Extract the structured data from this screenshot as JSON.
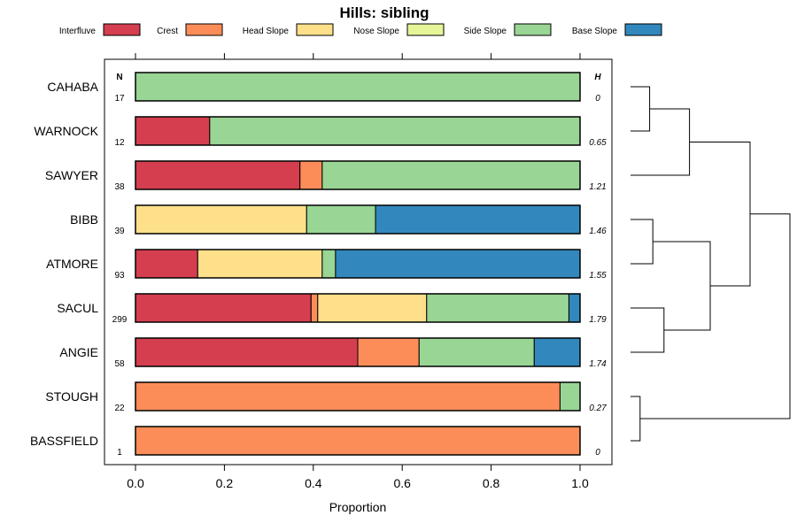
{
  "chart_data": {
    "type": "bar",
    "stacked": true,
    "orientation": "horizontal",
    "title": "Hills: sibling",
    "xlabel": "Proportion",
    "ylabel": "",
    "xlim": [
      0,
      1
    ],
    "x_ticks": [
      "0.0",
      "0.2",
      "0.4",
      "0.6",
      "0.8",
      "1.0"
    ],
    "left_column_header": "N",
    "right_column_header": "H",
    "legend_position": "top",
    "legend": [
      {
        "name": "Interfluve",
        "color": "#D53E4F"
      },
      {
        "name": "Crest",
        "color": "#FC8D59"
      },
      {
        "name": "Head Slope",
        "color": "#FEE08B"
      },
      {
        "name": "Nose Slope",
        "color": "#E6F598"
      },
      {
        "name": "Side Slope",
        "color": "#99D594"
      },
      {
        "name": "Base Slope",
        "color": "#3288BD"
      }
    ],
    "rows": [
      {
        "name": "CAHABA",
        "n": "17",
        "h": "0",
        "values": [
          0,
          0,
          0,
          0,
          1.0,
          0
        ]
      },
      {
        "name": "WARNOCK",
        "n": "12",
        "h": "0.65",
        "values": [
          0.167,
          0,
          0,
          0,
          0.833,
          0
        ]
      },
      {
        "name": "SAWYER",
        "n": "38",
        "h": "1.21",
        "values": [
          0.37,
          0.05,
          0,
          0,
          0.58,
          0
        ]
      },
      {
        "name": "BIBB",
        "n": "39",
        "h": "1.46",
        "values": [
          0,
          0,
          0.385,
          0,
          0.155,
          0.46
        ]
      },
      {
        "name": "ATMORE",
        "n": "93",
        "h": "1.55",
        "values": [
          0.14,
          0,
          0.28,
          0,
          0.03,
          0.55
        ]
      },
      {
        "name": "SACUL",
        "n": "299",
        "h": "1.79",
        "values": [
          0.395,
          0.015,
          0.245,
          0,
          0.32,
          0.025
        ]
      },
      {
        "name": "ANGIE",
        "n": "58",
        "h": "1.74",
        "values": [
          0.5,
          0.138,
          0,
          0,
          0.259,
          0.103
        ]
      },
      {
        "name": "STOUGH",
        "n": "22",
        "h": "0.27",
        "values": [
          0,
          0.955,
          0,
          0,
          0.045,
          0
        ]
      },
      {
        "name": "BASSFIELD",
        "n": "1",
        "h": "0",
        "values": [
          0,
          1.0,
          0,
          0,
          0,
          0
        ]
      }
    ],
    "dendrogram": {
      "leaves": [
        "CAHABA",
        "WARNOCK",
        "SAWYER",
        "BIBB",
        "ATMORE",
        "SACUL",
        "ANGIE",
        "STOUGH",
        "BASSFIELD"
      ],
      "merges": [
        {
          "left": 0,
          "right": 1,
          "height": 0.12
        },
        {
          "left": 9,
          "right": 2,
          "height": 0.37
        },
        {
          "left": 3,
          "right": 4,
          "height": 0.14
        },
        {
          "left": 5,
          "right": 6,
          "height": 0.21
        },
        {
          "left": 11,
          "right": 12,
          "height": 0.5
        },
        {
          "left": 10,
          "right": 13,
          "height": 0.75
        },
        {
          "left": 7,
          "right": 8,
          "height": 0.06
        },
        {
          "left": 14,
          "right": 15,
          "height": 1.0
        }
      ]
    }
  }
}
